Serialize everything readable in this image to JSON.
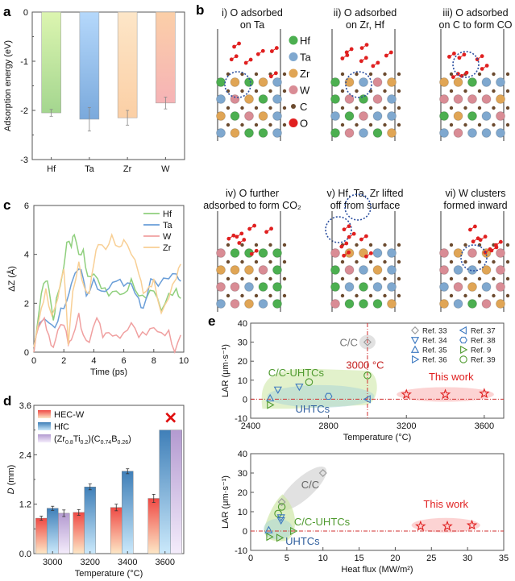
{
  "panel_labels": {
    "a": "a",
    "b": "b",
    "c": "c",
    "d": "d",
    "e": "e"
  },
  "panel_b": {
    "captions": [
      [
        "i) O adsorbed",
        "on Ta"
      ],
      [
        "ii) O adsorbed",
        "on Zr, Hf"
      ],
      [
        "iii) O adsorbed",
        "on C to form CO"
      ],
      [
        "iv) O further",
        "adsorbed to form CO₂"
      ],
      [
        "v) Hf, Ta, Zr lifted",
        "off from surface"
      ],
      [
        "vi) W clusters",
        "formed inward"
      ]
    ],
    "legend": [
      {
        "label": "Hf",
        "color": "#4caf50"
      },
      {
        "label": "Ta",
        "color": "#7fa8cf"
      },
      {
        "label": "Zr",
        "color": "#e0a555"
      },
      {
        "label": "W",
        "color": "#d98c95"
      },
      {
        "label": "C",
        "color": "#6b4a2e"
      },
      {
        "label": "O",
        "color": "#e02020"
      }
    ]
  },
  "chart_data": [
    {
      "id": "a",
      "type": "bar",
      "categories": [
        "Hf",
        "Ta",
        "Zr",
        "W"
      ],
      "values": [
        -2.05,
        -2.18,
        -2.15,
        -1.85
      ],
      "errors": [
        0.07,
        0.24,
        0.15,
        0.12
      ],
      "colors": [
        "#a9db8f",
        "#8ab7e6",
        "#fbd3a9",
        "#f6b3b3"
      ],
      "ylabel": "Adsorption energy (eV)",
      "ylim": [
        -3,
        0
      ],
      "yticks": [
        "0",
        "-1",
        "-2",
        "-3"
      ]
    },
    {
      "id": "c",
      "type": "line",
      "xlabel": "Time (ps)",
      "ylabel": "ΔZ (Å)",
      "xlim": [
        0,
        10
      ],
      "ylim": [
        0,
        6
      ],
      "xticks": [
        "0",
        "2",
        "4",
        "6",
        "8",
        "10"
      ],
      "yticks": [
        "0",
        "2",
        "4",
        "6"
      ],
      "legend_position": "top-right",
      "series": [
        {
          "name": "Hf",
          "color": "#8fcf7d",
          "x": [
            0,
            0.5,
            0.8,
            1,
            1.3,
            1.5,
            2,
            2.2,
            2.5,
            2.7,
            3,
            3.3,
            3.6,
            4,
            4.5,
            5,
            5.5,
            6,
            6.5,
            7,
            7.5,
            8,
            8.5,
            9,
            9.5,
            9.8
          ],
          "y": [
            0,
            2.4,
            2.9,
            2.6,
            1.3,
            2.2,
            3.5,
            4.5,
            4.3,
            4.8,
            4.0,
            4.2,
            3.1,
            3.2,
            2.6,
            2.3,
            2.5,
            2.4,
            3.0,
            2.3,
            2.2,
            2.5,
            1.7,
            2.4,
            2.6,
            2.2
          ]
        },
        {
          "name": "Ta",
          "color": "#6a9ed8",
          "x": [
            0,
            0.4,
            1,
            1.4,
            1.8,
            2.2,
            2.5,
            3,
            3.3,
            3.5,
            4,
            4.5,
            5,
            5.5,
            6,
            6.5,
            7,
            7.3,
            7.8,
            8.3,
            9,
            9.5,
            9.8
          ],
          "y": [
            0.2,
            1.2,
            1.2,
            1.0,
            1.8,
            2.1,
            2.8,
            3.4,
            3.0,
            2.3,
            3.0,
            2.5,
            2.6,
            2.9,
            2.7,
            2.8,
            2.2,
            1.8,
            3.0,
            2.7,
            3.0,
            3.2,
            2.9
          ]
        },
        {
          "name": "W",
          "color": "#f0a0a0",
          "x": [
            0,
            0.3,
            0.7,
            1,
            1.3,
            1.6,
            2,
            2.3,
            2.5,
            3,
            3.3,
            3.7,
            4.2,
            4.6,
            5,
            5.5,
            6,
            6.5,
            7,
            7.5,
            8,
            8.5,
            9,
            9.4,
            9.8
          ],
          "y": [
            0,
            1.0,
            1.4,
            0.7,
            0.2,
            0.9,
            1.1,
            0.3,
            0.5,
            1.6,
            0.7,
            0.4,
            1.4,
            0.6,
            0.8,
            0.7,
            0.8,
            1.2,
            0.6,
            0.7,
            1.0,
            0.8,
            0.9,
            0.0,
            0.7
          ]
        },
        {
          "name": "Zr",
          "color": "#f8cf95",
          "x": [
            0,
            0.5,
            0.8,
            1.2,
            1.6,
            2,
            2.3,
            2.6,
            3,
            3.4,
            3.7,
            4,
            4.3,
            4.8,
            5.2,
            5.7,
            6,
            6.5,
            7,
            7.3,
            7.7,
            8,
            8.5,
            9,
            9.5,
            9.8
          ],
          "y": [
            0.2,
            1.8,
            2.6,
            1.5,
            2.2,
            3.4,
            0.3,
            2.5,
            3.7,
            2.6,
            2.4,
            3.6,
            4.4,
            4.2,
            4.8,
            4.3,
            4.6,
            4.0,
            3.2,
            2.4,
            2.7,
            3.0,
            1.6,
            2.2,
            3.0,
            3.6
          ]
        }
      ]
    },
    {
      "id": "d",
      "type": "bar",
      "xlabel": "Temperature (°C)",
      "ylabel": "D (mm)",
      "categories": [
        "3000",
        "3200",
        "3400",
        "3600"
      ],
      "ylim": [
        0,
        3.6
      ],
      "yticks": [
        "0.0",
        "1.2",
        "2.4",
        "3.6"
      ],
      "legend_position": "top-left",
      "series": [
        {
          "name": "HEC-W",
          "color": "#ef4a45",
          "values": [
            0.86,
            1.0,
            1.12,
            1.34
          ],
          "errors": [
            0.05,
            0.07,
            0.08,
            0.1
          ]
        },
        {
          "name": "HfC",
          "color": "#3f82bb",
          "values": [
            1.1,
            1.62,
            2.0,
            3.0
          ],
          "errors": [
            0.05,
            0.07,
            0.06,
            0
          ]
        },
        {
          "name_parts": [
            "(Zr",
            "0.8",
            "Ti",
            "0.2",
            ")(C",
            "0.74",
            "B",
            "0.26",
            ")"
          ],
          "color": "#b9a2d3",
          "values": [
            0.98,
            null,
            null,
            3.0
          ],
          "errors": [
            0.08,
            0,
            0,
            0
          ]
        }
      ],
      "failed_marker": {
        "category": "3600",
        "symbol": "✕",
        "color": "#e01010"
      }
    },
    {
      "id": "e-top",
      "type": "scatter",
      "xlabel": "Temperature (°C)",
      "ylabel": "LAR (μm·s⁻¹)",
      "xlim": [
        2400,
        3700
      ],
      "ylim": [
        -10,
        40
      ],
      "xticks": [
        2400,
        2800,
        3200,
        3600
      ],
      "yticks": [
        -10,
        0,
        10,
        20,
        30,
        40
      ],
      "legend_position": "top-right",
      "vline": {
        "x": 3000,
        "label": "3000 °C"
      },
      "regions": [
        {
          "label": "C/C",
          "color": "#aaaaaa"
        },
        {
          "label": "C/C-UHTCs",
          "color": "#4e9a2e"
        },
        {
          "label": "UHTCs",
          "color": "#2f5f9e"
        },
        {
          "label": "This work",
          "color": "#e02020"
        }
      ],
      "legend": [
        {
          "ref": "Ref. 33",
          "marker": "diamond",
          "color": "#999999"
        },
        {
          "ref": "Ref. 34",
          "marker": "triangle-down",
          "color": "#3b78c0"
        },
        {
          "ref": "Ref. 35",
          "marker": "triangle-up",
          "color": "#3b78c0"
        },
        {
          "ref": "Ref. 36",
          "marker": "triangle-right",
          "color": "#3b78c0"
        },
        {
          "ref": "Ref. 37",
          "marker": "triangle-left",
          "color": "#3b78c0"
        },
        {
          "ref": "Ref. 38",
          "marker": "hexagon",
          "color": "#3b78c0"
        },
        {
          "ref": "Ref. 9",
          "marker": "triangle-right",
          "color": "#4e9a2e"
        },
        {
          "ref": "Ref. 39",
          "marker": "circle",
          "color": "#4e9a2e"
        }
      ],
      "points": [
        {
          "ref": "Ref. 33",
          "x": 3000,
          "y": 30
        },
        {
          "ref": "Ref. 34",
          "x": 2540,
          "y": 5
        },
        {
          "ref": "Ref. 34",
          "x": 2650,
          "y": 6.5
        },
        {
          "ref": "Ref. 35",
          "x": 2500,
          "y": 0.5
        },
        {
          "ref": "Ref. 9",
          "x": 2500,
          "y": -3
        },
        {
          "ref": "Ref. 37",
          "x": 3000,
          "y": 0
        },
        {
          "ref": "Ref. 38",
          "x": 2800,
          "y": 1.5
        },
        {
          "ref": "Ref. 39",
          "x": 2700,
          "y": 9
        },
        {
          "ref": "Ref. 39",
          "x": 3000,
          "y": 12.5
        },
        {
          "ref": "This work",
          "x": 3200,
          "y": 2.5
        },
        {
          "ref": "This work",
          "x": 3400,
          "y": 2.5
        },
        {
          "ref": "This work",
          "x": 3600,
          "y": 3
        }
      ]
    },
    {
      "id": "e-bottom",
      "type": "scatter",
      "xlabel": "Heat flux (MW/m²)",
      "ylabel": "LAR (μm·s⁻¹)",
      "xlim": [
        0,
        35
      ],
      "ylim": [
        -10,
        40
      ],
      "xticks": [
        0,
        5,
        10,
        15,
        20,
        25,
        30,
        35
      ],
      "yticks": [
        -10,
        0,
        10,
        20,
        30,
        40
      ],
      "regions": [
        {
          "label": "C/C",
          "color": "#aaaaaa"
        },
        {
          "label": "C/C-UHTCs",
          "color": "#4e9a2e"
        },
        {
          "label": "UHTCs",
          "color": "#2f5f9e"
        },
        {
          "label": "This work",
          "color": "#e02020"
        }
      ],
      "points": [
        {
          "ref": "Ref. 33",
          "x": 4.3,
          "y": 15
        },
        {
          "ref": "Ref. 33",
          "x": 10,
          "y": 30
        },
        {
          "ref": "Ref. 39",
          "x": 4.3,
          "y": 12.5
        },
        {
          "ref": "Ref. 39",
          "x": 3.8,
          "y": 9
        },
        {
          "ref": "Ref. 34",
          "x": 4.2,
          "y": 7
        },
        {
          "ref": "Ref. 34",
          "x": 4.2,
          "y": 5.5
        },
        {
          "ref": "Ref. 35",
          "x": 2.5,
          "y": 0.5
        },
        {
          "ref": "Ref. 9",
          "x": 2.6,
          "y": -3
        },
        {
          "ref": "Ref. 9",
          "x": 4,
          "y": -3.5
        },
        {
          "ref": "Ref. 9",
          "x": 5.9,
          "y": 0
        },
        {
          "ref": "This work",
          "x": 23.5,
          "y": 2.5
        },
        {
          "ref": "This work",
          "x": 27.2,
          "y": 2.5
        },
        {
          "ref": "This work",
          "x": 30.6,
          "y": 3
        }
      ]
    }
  ]
}
